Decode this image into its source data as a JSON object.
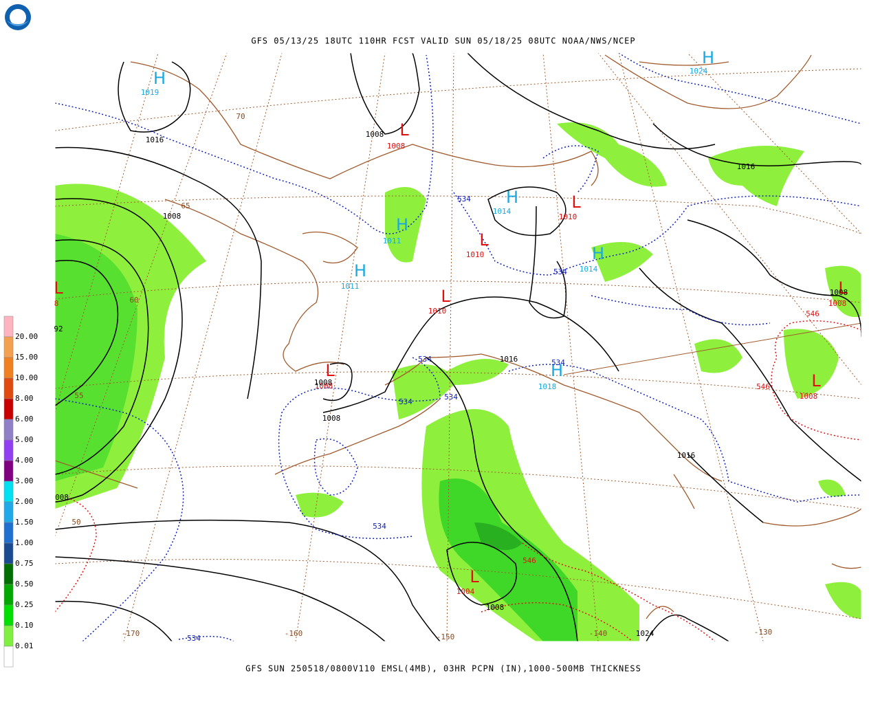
{
  "header": {
    "title": "GFS 05/13/25 18UTC 110HR FCST VALID SUN 05/18/25 08UTC NOAA/NWS/NCEP"
  },
  "footer": {
    "caption": "GFS SUN 250518/0800V110 EMSL(4MB), 03HR PCPN (IN),1000-500MB THICKNESS"
  },
  "legend": {
    "labels": [
      "20.00",
      "15.00",
      "10.00",
      "8.00",
      "6.00",
      "5.00",
      "4.00",
      "3.00",
      "2.00",
      "1.50",
      "1.00",
      "0.75",
      "0.50",
      "0.25",
      "0.10",
      "0.01"
    ]
  },
  "map": {
    "centers": [
      {
        "symbol": "H",
        "value": "1019"
      },
      {
        "symbol": "H",
        "value": "1024"
      },
      {
        "symbol": "L",
        "value": "1008"
      },
      {
        "symbol": "H",
        "value": "1014"
      },
      {
        "symbol": "L",
        "value": "1010"
      },
      {
        "symbol": "H",
        "value": "1011"
      },
      {
        "symbol": "L",
        "value": "1010"
      },
      {
        "symbol": "H",
        "value": "1014"
      },
      {
        "symbol": "H",
        "value": "1011"
      },
      {
        "symbol": "L",
        "value": "1010"
      },
      {
        "symbol": "L",
        "value": "8"
      },
      {
        "symbol": "L",
        "value": "1008"
      },
      {
        "symbol": "L",
        "value": "1008"
      },
      {
        "symbol": "H",
        "value": "1018"
      },
      {
        "symbol": "L",
        "value": "1008"
      },
      {
        "symbol": "L",
        "value": "1004"
      }
    ],
    "isobar_labels": [
      "1016",
      "1008",
      "1008",
      "1016",
      "1008",
      "92",
      "1016",
      "1008",
      "1008",
      "1016",
      "008",
      "1008",
      "1024"
    ],
    "thickness_labels": [
      "534",
      "534",
      "534",
      "534",
      "534",
      "534",
      "534",
      "534",
      "546",
      "546",
      "546"
    ],
    "graticule_labels": [
      "70",
      "65",
      "60",
      "55",
      "50",
      "-170",
      "-160",
      "-150",
      "-140",
      "-130"
    ]
  }
}
